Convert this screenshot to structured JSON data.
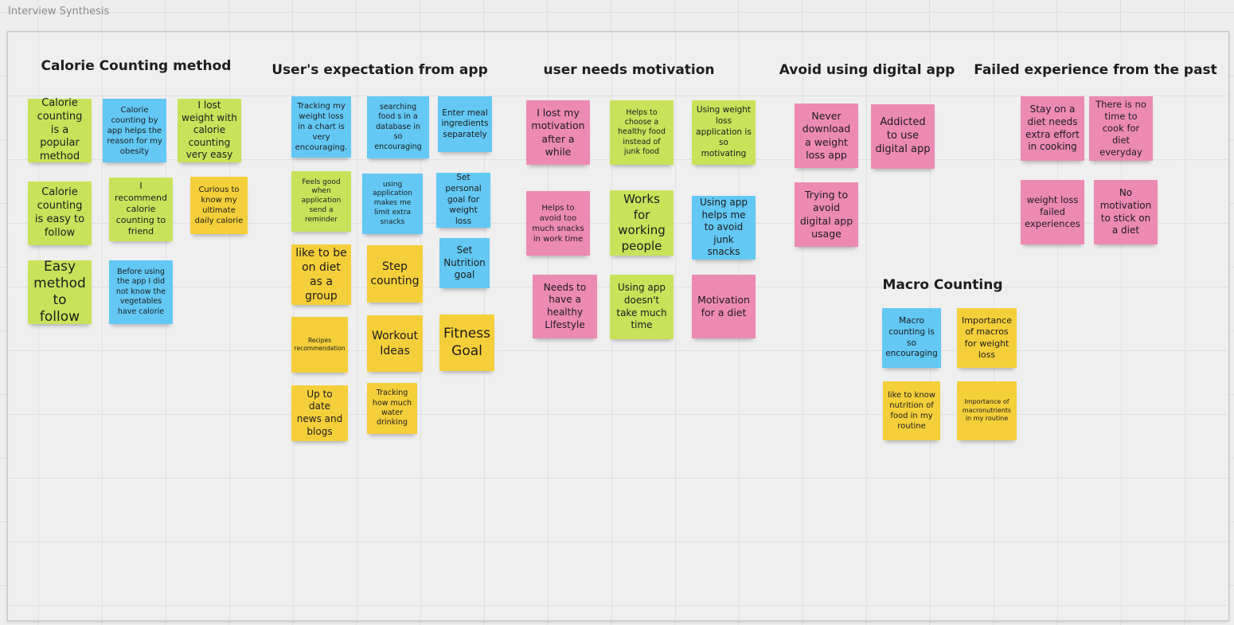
{
  "board": {
    "title": "Interview Synthesis"
  },
  "colors": {
    "yellow": "#f4cf3a",
    "green": "#c8e25a",
    "blue": "#63c8f4",
    "pink": "#ed8ab3"
  },
  "groups": {
    "calorie_counting_method": "Calorie Counting method",
    "user_expectation": "User's expectation from app",
    "user_needs_motivation": "user needs motivation",
    "avoid_digital_app": "Avoid using digital app",
    "failed_experience": "Failed experience from the past",
    "macro_counting": "Macro Counting"
  },
  "notes": {
    "cc1": "Calorie counting is a popular method",
    "cc2": "Calorie counting by app helps the reason for my obesity",
    "cc3": "I lost weight with calorie counting very easy",
    "cc4": "Calorie counting is easy to follow",
    "cc5": "I recommend calorie counting to friend",
    "cc6": "Curious to know my ultimate daily calorie",
    "cc7": "Easy method to follow",
    "cc8": "Before using the app I did not know the vegetables have calorie",
    "ue1": "Tracking my weight loss in a chart is very encouraging.",
    "ue2": "searching food s in a database in so encouraging",
    "ue3": "Enter meal ingredients separately",
    "ue4": "Feels good when application send a reminder",
    "ue5": "using application makes me limit extra snacks",
    "ue6": "Set personal goal for weight loss",
    "ue7": "like to be on diet as a group",
    "ue8": "Step counting",
    "ue9": "Set Nutrition goal",
    "ue10": "Recipes recommendation",
    "ue11": "Workout Ideas",
    "ue12": "Fitness Goal",
    "ue13": "Up to date news and blogs",
    "ue14": "Tracking how much water drinking",
    "um1": "I lost my motivation after a while",
    "um2": "Helps to choose a healthy food instead of junk food",
    "um3": "Using weight loss application is so motivating",
    "um4": "Helps to avoid too much snacks in work time",
    "um5": "Works for working people",
    "um6": "Using app helps me to avoid junk snacks",
    "um7": "Needs to have a healthy Llfestyle",
    "um8": "Using app doesn't take much time",
    "um9": "Motivation for a diet",
    "ad1": "Never download a weight loss app",
    "ad2": "Addicted to use digital app",
    "ad3": "Trying to avoid digital app usage",
    "fe1": "Stay on a diet needs extra effort in cooking",
    "fe2": "There is no time to cook for diet everyday",
    "fe3": "weight loss failed experiences",
    "fe4": "No motivation to stick on a diet",
    "mc1": "Macro counting is so encouraging",
    "mc2": "Importance of macros for weight loss",
    "mc3": "like to know nutrition of food in my routine",
    "mc4": "Importance of macronutrients in my routine"
  }
}
